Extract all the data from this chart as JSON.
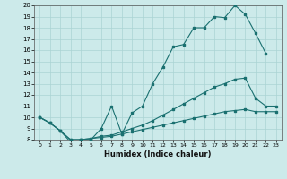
{
  "xlabel": "Humidex (Indice chaleur)",
  "background_color": "#cceaea",
  "grid_color": "#aad4d4",
  "line_color": "#1a7070",
  "xlim": [
    -0.5,
    23.5
  ],
  "ylim": [
    8,
    20
  ],
  "xticks": [
    0,
    1,
    2,
    3,
    4,
    5,
    6,
    7,
    8,
    9,
    10,
    11,
    12,
    13,
    14,
    15,
    16,
    17,
    18,
    19,
    20,
    21,
    22,
    23
  ],
  "yticks": [
    8,
    9,
    10,
    11,
    12,
    13,
    14,
    15,
    16,
    17,
    18,
    19,
    20
  ],
  "line1_x": [
    0,
    1,
    2,
    3,
    4,
    5,
    6,
    7,
    8,
    9,
    10,
    11,
    12,
    13,
    14,
    15,
    16,
    17,
    18,
    19,
    20,
    21,
    22
  ],
  "line1_y": [
    10.0,
    9.5,
    8.8,
    7.8,
    8.0,
    8.0,
    9.0,
    11.0,
    8.5,
    10.4,
    11.0,
    13.0,
    14.5,
    16.3,
    16.5,
    18.0,
    18.0,
    19.0,
    18.9,
    20.0,
    19.2,
    17.5,
    15.7
  ],
  "line2_x": [
    0,
    1,
    2,
    3,
    4,
    5,
    6,
    7,
    8,
    9,
    10,
    11,
    12,
    13,
    14,
    15,
    16,
    17,
    18,
    19,
    20,
    21,
    22,
    23
  ],
  "line2_y": [
    10.0,
    9.5,
    8.8,
    8.0,
    8.0,
    8.1,
    8.3,
    8.4,
    8.7,
    9.0,
    9.3,
    9.7,
    10.2,
    10.7,
    11.2,
    11.7,
    12.2,
    12.7,
    13.0,
    13.4,
    13.5,
    11.7,
    11.0,
    11.0
  ],
  "line3_x": [
    0,
    1,
    2,
    3,
    4,
    5,
    6,
    7,
    8,
    9,
    10,
    11,
    12,
    13,
    14,
    15,
    16,
    17,
    18,
    19,
    20,
    21,
    22,
    23
  ],
  "line3_y": [
    10.0,
    9.5,
    8.8,
    8.0,
    8.0,
    8.1,
    8.2,
    8.3,
    8.5,
    8.7,
    8.9,
    9.1,
    9.3,
    9.5,
    9.7,
    9.9,
    10.1,
    10.3,
    10.5,
    10.6,
    10.7,
    10.5,
    10.5,
    10.5
  ]
}
